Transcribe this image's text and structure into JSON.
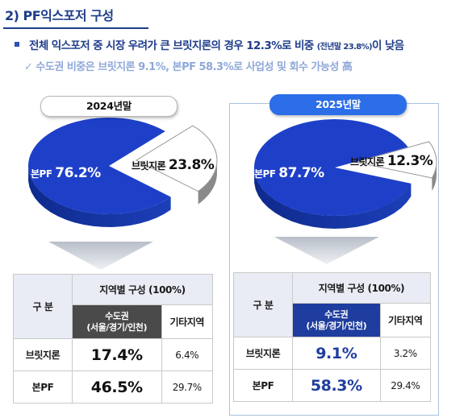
{
  "header": {
    "section_title": "2) PF익스포저 구성",
    "bullet_main": "전체 익스포저 중 시장 우려가 큰 브릿지론의 경우 12.3%로 비중 ",
    "bullet_small": "(전년말 23.8%)",
    "bullet_end": "이 낮음",
    "sub_bullet": "✓ 수도권 비중은 브릿지론 9.1%, 본PF 58.3%로 사업성 및 회수 가능성 高"
  },
  "chart_data": [
    {
      "type": "pie",
      "title": "2024년말",
      "slices": [
        {
          "name": "본PF",
          "value": 76.2,
          "label": "76.2%",
          "color": "#1e40c8"
        },
        {
          "name": "브릿지론",
          "value": 23.8,
          "label": "23.8%",
          "color": "#ffffff"
        }
      ]
    },
    {
      "type": "pie",
      "title": "2025년말",
      "slices": [
        {
          "name": "본PF",
          "value": 87.7,
          "label": "87.7%",
          "color": "#1e40c8"
        },
        {
          "name": "브릿지론",
          "value": 12.3,
          "label": "12.3%",
          "color": "#ffffff"
        }
      ]
    },
    {
      "type": "table",
      "title": "2024년말",
      "header": {
        "category": "구 분",
        "group": "지역별 구성 (100%)",
        "capital_line1": "수도권",
        "capital_line2": "(서울/경기/인천)",
        "other": "기타지역"
      },
      "rows": [
        {
          "name": "브릿지론",
          "capital": "17.4%",
          "other": "6.4%"
        },
        {
          "name": "본PF",
          "capital": "46.5%",
          "other": "29.7%"
        }
      ]
    },
    {
      "type": "table",
      "title": "2025년말",
      "header": {
        "category": "구 분",
        "group": "지역별 구성 (100%)",
        "capital_line1": "수도권",
        "capital_line2": "(서울/경기/인천)",
        "other": "기타지역"
      },
      "rows": [
        {
          "name": "브릿지론",
          "capital": "9.1%",
          "other": "3.2%"
        },
        {
          "name": "본PF",
          "capital": "58.3%",
          "other": "29.4%"
        }
      ]
    }
  ],
  "colors": {
    "primary_blue": "#1e40c8",
    "pill_blue": "#2b6ee8",
    "title_navy": "#1f3d8a",
    "dark_cell": "#4a4a4a"
  }
}
